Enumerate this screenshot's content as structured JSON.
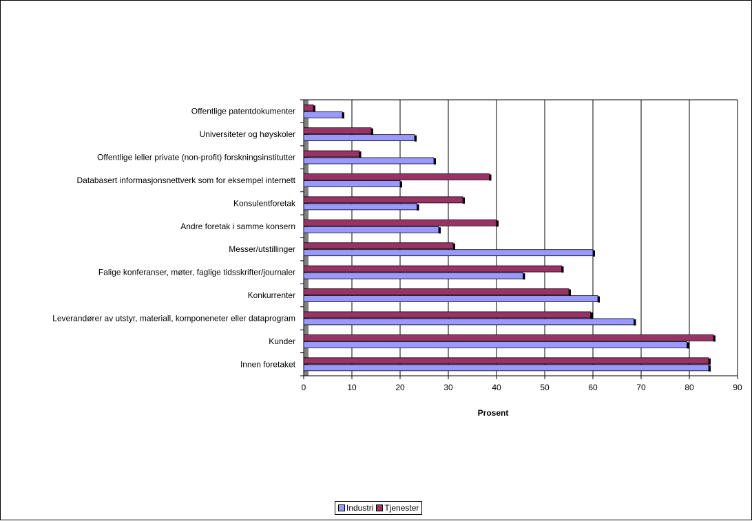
{
  "chart_data": {
    "type": "bar",
    "orientation": "horizontal",
    "categories": [
      "Offentlige patentdokumenter",
      "Universiteter og høyskoler",
      "Offentlige leller private (non-profit) forskningsinstitutter",
      "Databasert informasjonsnettverk som for eksempel internett",
      "Konsulentforetak",
      "Andre foretak i samme konsern",
      "Messer/utstillinger",
      "Falige konferanser, møter, faglige tidsskrifter/journaler",
      "Konkurrenter",
      "Leverandører av utstyr, materiall, komponeneter eller dataprogram",
      "Kunder",
      "Innen foretaket"
    ],
    "series": [
      {
        "name": "Industri",
        "color": "#9999ff",
        "values": [
          8,
          23,
          27,
          20,
          23.5,
          28,
          60,
          45.5,
          61,
          68.5,
          79.5,
          84
        ]
      },
      {
        "name": "Tjenester",
        "color": "#993366",
        "values": [
          2,
          14,
          11.5,
          38.5,
          33,
          40,
          31,
          53.5,
          55,
          59.5,
          85,
          84
        ]
      }
    ],
    "xlabel": "Prosent",
    "xlim": [
      0,
      90
    ],
    "xticks": [
      "0",
      "10",
      "20",
      "30",
      "40",
      "50",
      "60",
      "70",
      "80",
      "90"
    ],
    "grid": "vertical",
    "legend": "bottom"
  }
}
